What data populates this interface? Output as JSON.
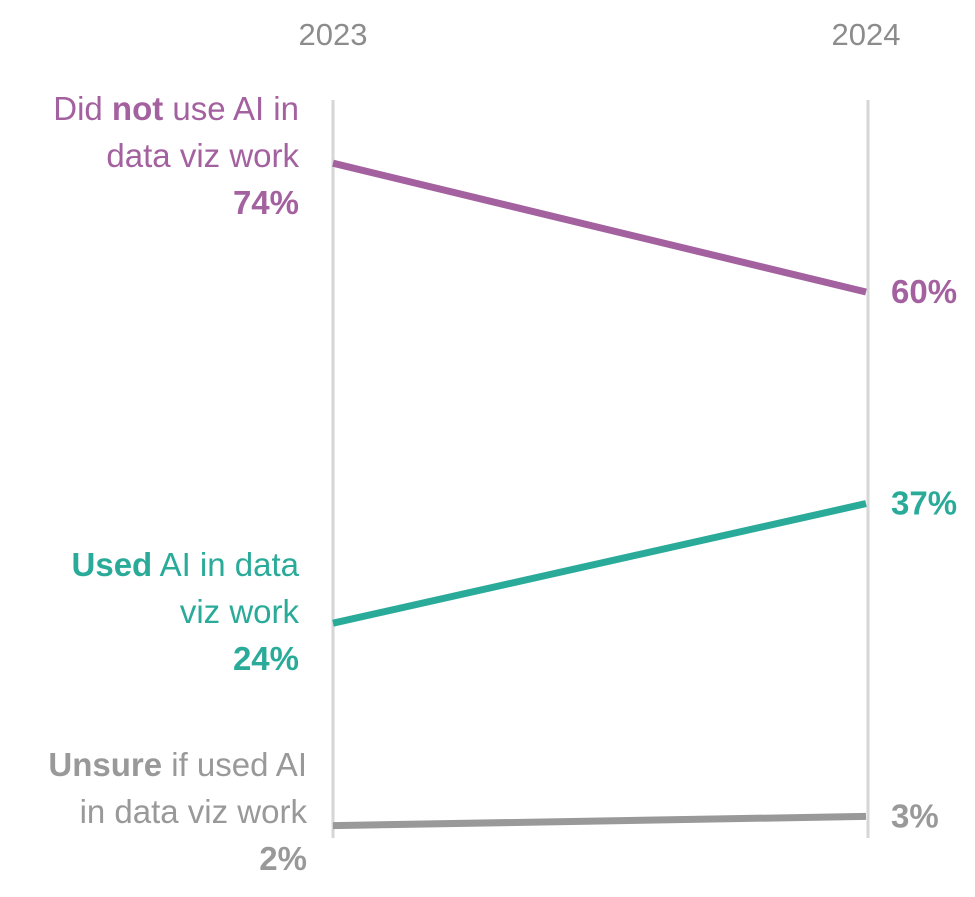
{
  "chart_data": {
    "type": "line",
    "x": [
      "2023",
      "2024"
    ],
    "ylim": [
      0,
      80
    ],
    "grid": false,
    "legend": "none",
    "series": [
      {
        "id": "not_used",
        "label_lines": [
          [
            {
              "text": "Did ",
              "bold": false
            },
            {
              "text": "not",
              "bold": true
            },
            {
              "text": " use AI in",
              "bold": false
            }
          ],
          [
            {
              "text": "data viz work",
              "bold": false
            }
          ]
        ],
        "values": [
          74,
          60
        ],
        "value_labels": [
          "74%",
          "60%"
        ],
        "color": "#a3619f"
      },
      {
        "id": "used",
        "label_lines": [
          [
            {
              "text": "Used",
              "bold": true
            },
            {
              "text": " AI in data",
              "bold": false
            }
          ],
          [
            {
              "text": "viz work",
              "bold": false
            }
          ]
        ],
        "values": [
          24,
          37
        ],
        "value_labels": [
          "24%",
          "37%"
        ],
        "color": "#2aab99"
      },
      {
        "id": "unsure",
        "label_lines": [
          [
            {
              "text": "Unsure",
              "bold": true
            },
            {
              "text": " if used AI",
              "bold": false
            }
          ],
          [
            {
              "text": "in data viz work",
              "bold": false
            }
          ]
        ],
        "values": [
          2,
          3
        ],
        "value_labels": [
          "2%",
          "3%"
        ],
        "color": "#999999"
      }
    ]
  }
}
